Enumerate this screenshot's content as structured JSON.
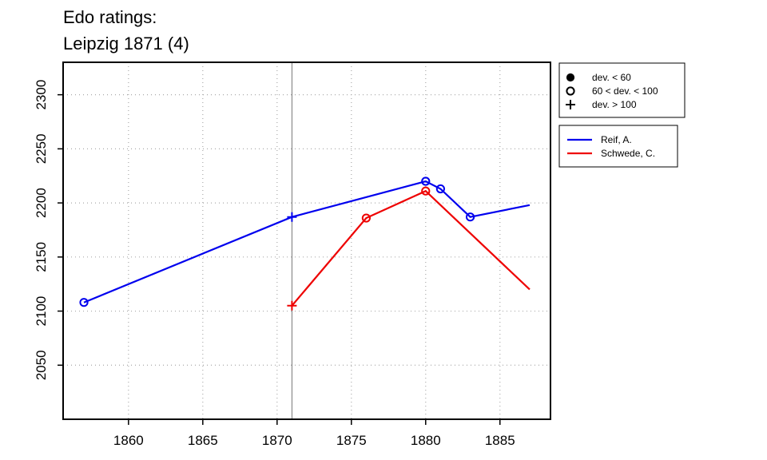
{
  "chart_data": {
    "type": "line",
    "title": [
      "Edo ratings:",
      "Leipzig 1871 (4)"
    ],
    "xlim": [
      1855.6,
      1888.4
    ],
    "ylim": [
      2000,
      2330
    ],
    "x_ticks": [
      1860,
      1865,
      1870,
      1875,
      1880,
      1885
    ],
    "y_ticks": [
      2050,
      2100,
      2150,
      2200,
      2250,
      2300
    ],
    "grid": "dotted",
    "event_line_x": 1871,
    "marker_legend": [
      {
        "symbol": "filled-circle",
        "label": "dev. < 60"
      },
      {
        "symbol": "open-circle",
        "label": "60 < dev. < 100"
      },
      {
        "symbol": "plus",
        "label": "dev. > 100"
      }
    ],
    "series": [
      {
        "name": "Reif, A.",
        "color": "#0000ee",
        "points": [
          {
            "x": 1857,
            "y": 2108,
            "marker": "open-circle"
          },
          {
            "x": 1871,
            "y": 2187,
            "marker": "plus"
          },
          {
            "x": 1880,
            "y": 2220,
            "marker": "open-circle"
          },
          {
            "x": 1881,
            "y": 2213,
            "marker": "open-circle"
          },
          {
            "x": 1883,
            "y": 2187,
            "marker": "open-circle"
          },
          {
            "x": 1887,
            "y": 2198,
            "marker": "none"
          }
        ]
      },
      {
        "name": "Schwede, C.",
        "color": "#ee0000",
        "points": [
          {
            "x": 1871,
            "y": 2105,
            "marker": "plus"
          },
          {
            "x": 1876,
            "y": 2186,
            "marker": "open-circle"
          },
          {
            "x": 1880,
            "y": 2211,
            "marker": "open-circle"
          },
          {
            "x": 1887,
            "y": 2120,
            "marker": "none"
          }
        ]
      }
    ]
  }
}
